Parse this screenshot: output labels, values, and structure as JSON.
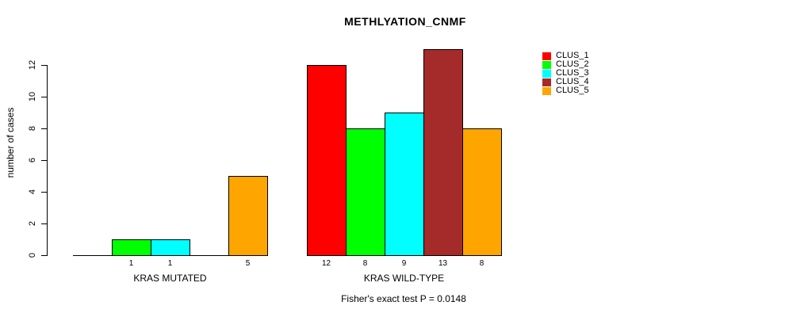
{
  "chart_data": {
    "type": "bar",
    "title": "METHLYATION_CNMF",
    "ylabel": "number of cases",
    "xlabel": "",
    "footer": "Fisher's exact test P = 0.0148",
    "ylim": [
      0,
      12
    ],
    "yticks": [
      0,
      2,
      4,
      6,
      8,
      10,
      12
    ],
    "grid": false,
    "legend_position": "right",
    "categories": [
      "KRAS MUTATED",
      "KRAS WILD-TYPE"
    ],
    "series": [
      {
        "name": "CLUS_1",
        "color": "#FF0000",
        "values": [
          0,
          12
        ]
      },
      {
        "name": "CLUS_2",
        "color": "#00FF00",
        "values": [
          1,
          8
        ]
      },
      {
        "name": "CLUS_3",
        "color": "#00FFFF",
        "values": [
          1,
          9
        ]
      },
      {
        "name": "CLUS_4",
        "color": "#A52A2A",
        "values": [
          0,
          13
        ]
      },
      {
        "name": "CLUS_5",
        "color": "#FFA500",
        "values": [
          5,
          8
        ]
      }
    ],
    "bar_value_labels": [
      [
        "",
        "1",
        "1",
        "",
        "5"
      ],
      [
        "12",
        "8",
        "9",
        "13",
        "8"
      ]
    ],
    "axis_color": "#000000"
  }
}
